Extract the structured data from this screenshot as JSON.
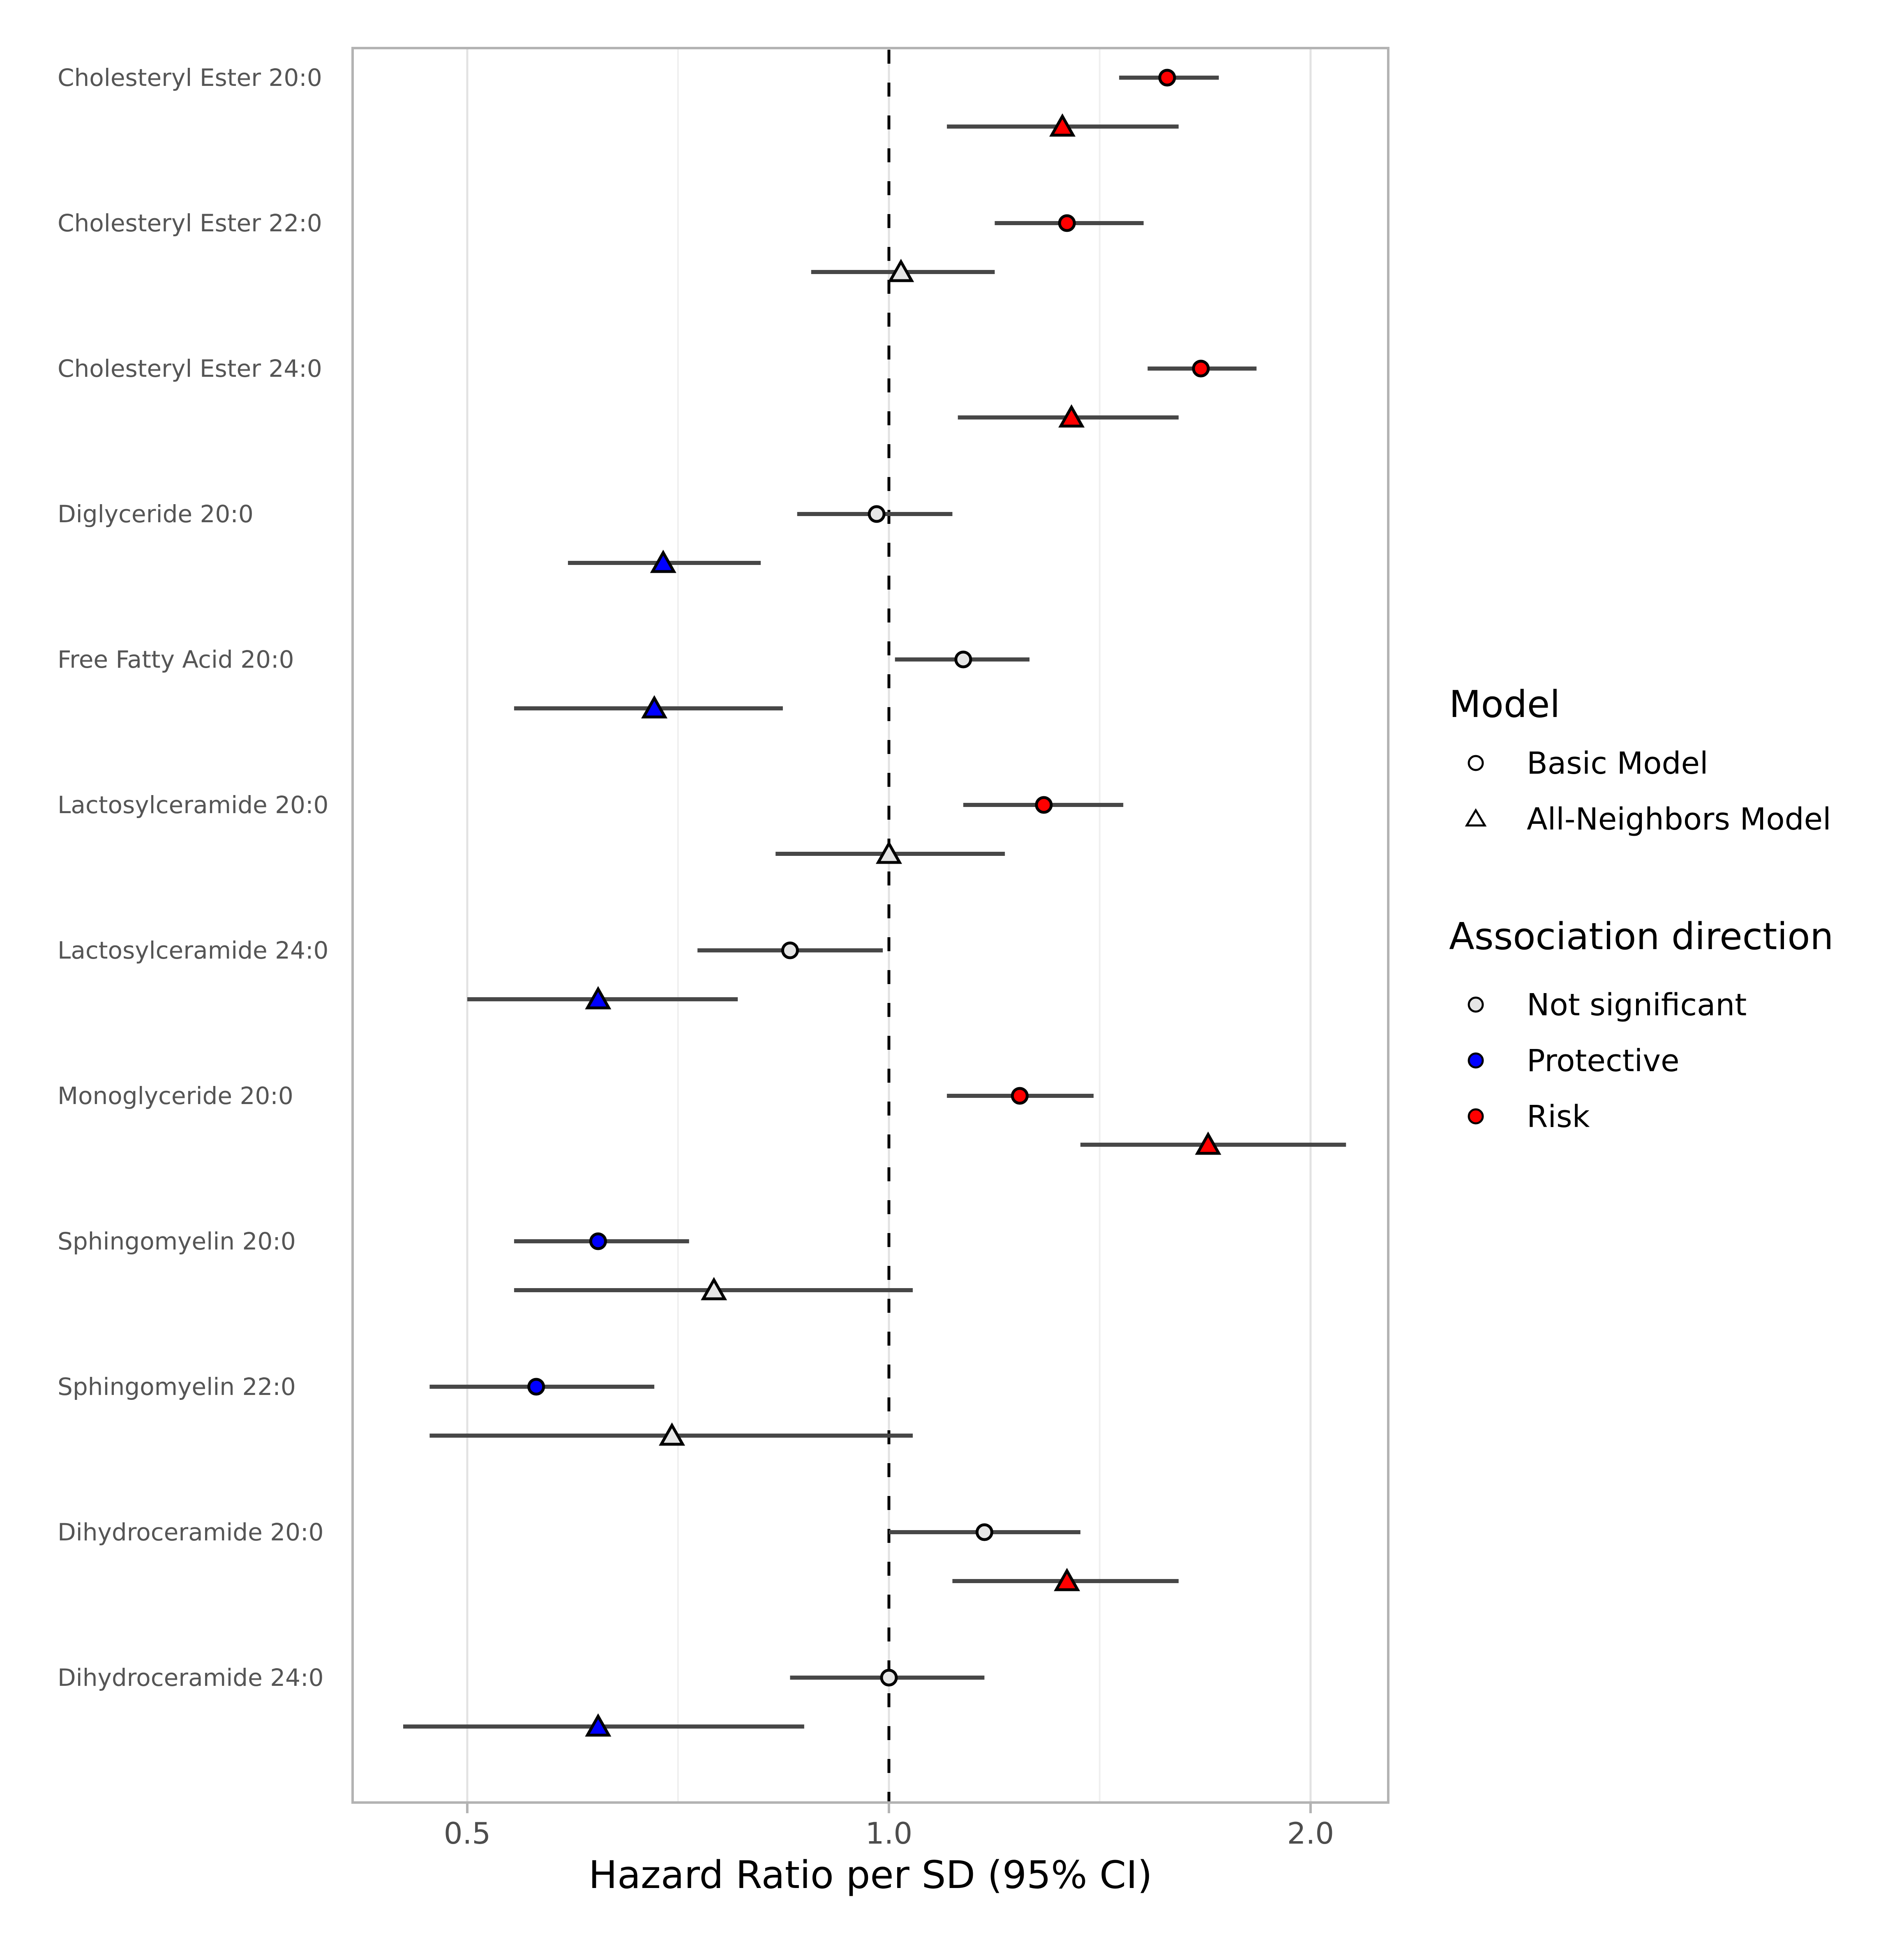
{
  "chart_data": {
    "type": "scatter",
    "subtype": "forest-plot",
    "title": "",
    "xlabel": "Hazard Ratio per SD (95% CI)",
    "ylabel": "",
    "x_scale": "log2",
    "x_ticks": [
      0.5,
      1.0,
      2.0
    ],
    "x_tick_labels": [
      "0.5",
      "1.0",
      "2.0"
    ],
    "x_minor_gridlines": [
      0.707,
      1.414
    ],
    "x_range": [
      0.41,
      2.27
    ],
    "reference_line": 1.0,
    "grid": true,
    "legend_position": "right",
    "direction_colors": {
      "risk": "#FF0000",
      "protective": "#0000FF",
      "not_significant": "#E6E6E6"
    },
    "rows": [
      {
        "lipid": "Cholesteryl Ester 20:0",
        "basic": {
          "model": "Basic Model",
          "shape": "circle",
          "direction": "risk",
          "hr": 1.58,
          "lo": 1.46,
          "hi": 1.72
        },
        "all_neighbors": {
          "model": "All-Neighbors Model",
          "shape": "triangle",
          "direction": "risk",
          "hr": 1.33,
          "lo": 1.1,
          "hi": 1.61
        }
      },
      {
        "lipid": "Cholesteryl Ester 22:0",
        "basic": {
          "model": "Basic Model",
          "shape": "circle",
          "direction": "risk",
          "hr": 1.34,
          "lo": 1.19,
          "hi": 1.52
        },
        "all_neighbors": {
          "model": "All-Neighbors Model",
          "shape": "triangle",
          "direction": "not_significant",
          "hr": 1.02,
          "lo": 0.88,
          "hi": 1.19
        }
      },
      {
        "lipid": "Cholesteryl Ester 24:0",
        "basic": {
          "model": "Basic Model",
          "shape": "circle",
          "direction": "risk",
          "hr": 1.67,
          "lo": 1.53,
          "hi": 1.83
        },
        "all_neighbors": {
          "model": "All-Neighbors Model",
          "shape": "triangle",
          "direction": "risk",
          "hr": 1.35,
          "lo": 1.12,
          "hi": 1.61
        }
      },
      {
        "lipid": "Diglyceride 20:0",
        "basic": {
          "model": "Basic Model",
          "shape": "circle",
          "direction": "not_significant",
          "hr": 0.98,
          "lo": 0.86,
          "hi": 1.11
        },
        "all_neighbors": {
          "model": "All-Neighbors Model",
          "shape": "triangle",
          "direction": "protective",
          "hr": 0.69,
          "lo": 0.59,
          "hi": 0.81
        }
      },
      {
        "lipid": "Free Fatty Acid 20:0",
        "basic": {
          "model": "Basic Model",
          "shape": "circle",
          "direction": "not_significant",
          "hr": 1.13,
          "lo": 1.01,
          "hi": 1.26
        },
        "all_neighbors": {
          "model": "All-Neighbors Model",
          "shape": "triangle",
          "direction": "protective",
          "hr": 0.68,
          "lo": 0.54,
          "hi": 0.84
        }
      },
      {
        "lipid": "Lactosylceramide 20:0",
        "basic": {
          "model": "Basic Model",
          "shape": "circle",
          "direction": "risk",
          "hr": 1.29,
          "lo": 1.13,
          "hi": 1.47
        },
        "all_neighbors": {
          "model": "All-Neighbors Model",
          "shape": "triangle",
          "direction": "not_significant",
          "hr": 1.0,
          "lo": 0.83,
          "hi": 1.21
        }
      },
      {
        "lipid": "Lactosylceramide 24:0",
        "basic": {
          "model": "Basic Model",
          "shape": "circle",
          "direction": "not_significant",
          "hr": 0.85,
          "lo": 0.73,
          "hi": 0.99
        },
        "all_neighbors": {
          "model": "All-Neighbors Model",
          "shape": "triangle",
          "direction": "protective",
          "hr": 0.62,
          "lo": 0.5,
          "hi": 0.78
        }
      },
      {
        "lipid": "Monoglyceride 20:0",
        "basic": {
          "model": "Basic Model",
          "shape": "circle",
          "direction": "risk",
          "hr": 1.24,
          "lo": 1.1,
          "hi": 1.4
        },
        "all_neighbors": {
          "model": "All-Neighbors Model",
          "shape": "triangle",
          "direction": "risk",
          "hr": 1.69,
          "lo": 1.37,
          "hi": 2.12
        }
      },
      {
        "lipid": "Sphingomyelin 20:0",
        "basic": {
          "model": "Basic Model",
          "shape": "circle",
          "direction": "protective",
          "hr": 0.62,
          "lo": 0.54,
          "hi": 0.72
        },
        "all_neighbors": {
          "model": "All-Neighbors Model",
          "shape": "triangle",
          "direction": "not_significant",
          "hr": 0.75,
          "lo": 0.54,
          "hi": 1.04
        }
      },
      {
        "lipid": "Sphingomyelin 22:0",
        "basic": {
          "model": "Basic Model",
          "shape": "circle",
          "direction": "protective",
          "hr": 0.56,
          "lo": 0.47,
          "hi": 0.68
        },
        "all_neighbors": {
          "model": "All-Neighbors Model",
          "shape": "triangle",
          "direction": "not_significant",
          "hr": 0.7,
          "lo": 0.47,
          "hi": 1.04
        }
      },
      {
        "lipid": "Dihydroceramide 20:0",
        "basic": {
          "model": "Basic Model",
          "shape": "circle",
          "direction": "not_significant",
          "hr": 1.17,
          "lo": 1.0,
          "hi": 1.37
        },
        "all_neighbors": {
          "model": "All-Neighbors Model",
          "shape": "triangle",
          "direction": "risk",
          "hr": 1.34,
          "lo": 1.11,
          "hi": 1.61
        }
      },
      {
        "lipid": "Dihydroceramide 24:0",
        "basic": {
          "model": "Basic Model",
          "shape": "circle",
          "direction": "not_significant",
          "hr": 1.0,
          "lo": 0.85,
          "hi": 1.17
        },
        "all_neighbors": {
          "model": "All-Neighbors Model",
          "shape": "triangle",
          "direction": "protective",
          "hr": 0.62,
          "lo": 0.45,
          "hi": 0.87
        }
      }
    ],
    "legend": {
      "model": {
        "title": "Model",
        "items": [
          {
            "shape": "circle",
            "label": "Basic Model"
          },
          {
            "shape": "triangle",
            "label": "All-Neighbors Model"
          }
        ]
      },
      "direction": {
        "title": "Association direction",
        "items": [
          {
            "label": "Not significant",
            "color": "#E6E6E6"
          },
          {
            "label": "Protective",
            "color": "#0000FF"
          },
          {
            "label": "Risk",
            "color": "#FF0000"
          }
        ]
      }
    }
  }
}
